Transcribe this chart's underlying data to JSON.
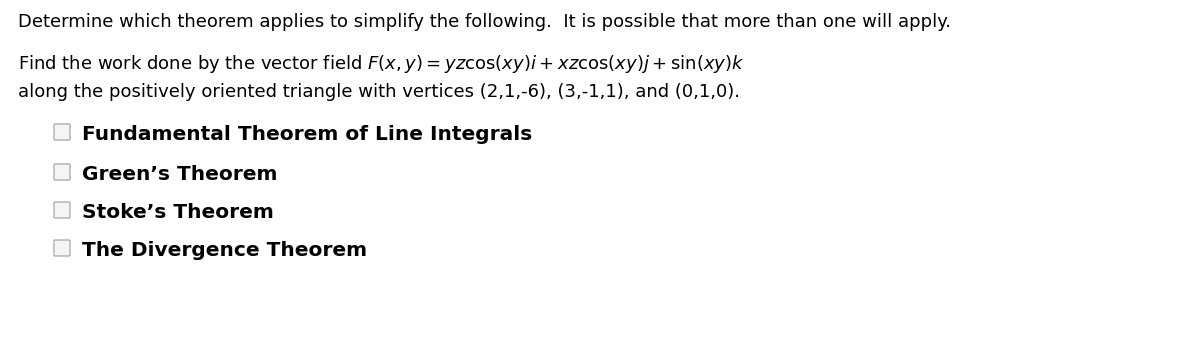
{
  "bg_color": "#ffffff",
  "header_text": "Determine which theorem applies to simplify the following.  It is possible that more than one will apply.",
  "problem_line1": "Find the work done by the vector field $F(x, y) = yz\\cos(xy)i + xz\\cos(xy)j + \\sin(xy)k$",
  "problem_line2": "along the positively oriented triangle with vertices (2,1,-6), (3,-1,1), and (0,1,0).",
  "options": [
    "Fundamental Theorem of Line Integrals",
    "Green’s Theorem",
    "Stoke’s Theorem",
    "The Divergence Theorem"
  ],
  "font_size_header": 13.0,
  "font_size_body": 13.0,
  "font_size_options": 14.5,
  "text_color": "#000000",
  "checkbox_edge_color": "#b0b0b0",
  "checkbox_face_color": "#f5f5f5"
}
